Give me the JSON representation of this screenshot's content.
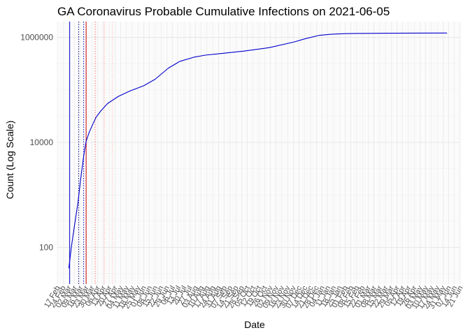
{
  "chart_data": {
    "type": "line",
    "title": "GA Coronavirus Probable Cumulative Infections on 2021-06-05",
    "xlabel": "Date",
    "ylabel": "Count (Log Scale)",
    "y_scale": "log10",
    "ylim": [
      20,
      2000000
    ],
    "y_ticks": [
      {
        "value": 100,
        "label": "100"
      },
      {
        "value": 10000,
        "label": "10000"
      },
      {
        "value": 1000000,
        "label": "1000000"
      }
    ],
    "xlim": [
      "2020-02-17",
      "2021-06-21"
    ],
    "x_tick_labels": [
      "17 Feb",
      "24 Feb",
      "02 Mar",
      "09 Mar",
      "16 Mar",
      "23 Mar",
      "30 Mar",
      "06 Apr",
      "13 Apr",
      "20 Apr",
      "27 Apr",
      "04 May",
      "11 May",
      "18 May",
      "25 May",
      "01 Jun",
      "08 Jun",
      "15 Jun",
      "22 Jun",
      "29 Jun",
      "06 Jul",
      "13 Jul",
      "20 Jul",
      "27 Jul",
      "03 Aug",
      "10 Aug",
      "17 Aug",
      "24 Aug",
      "31 Aug",
      "07 Sep",
      "14 Sep",
      "21 Sep",
      "28 Sep",
      "05 Oct",
      "12 Oct",
      "19 Oct",
      "26 Oct",
      "02 Nov",
      "09 Nov",
      "16 Nov",
      "23 Nov",
      "30 Nov",
      "07 Dec",
      "14 Dec",
      "21 Dec",
      "28 Dec",
      "04 Jan",
      "11 Jan",
      "18 Jan",
      "25 Jan",
      "01 Feb",
      "08 Feb",
      "15 Feb",
      "22 Feb",
      "01 Mar",
      "08 Mar",
      "15 Mar",
      "22 Mar",
      "29 Mar",
      "05 Apr",
      "12 Apr",
      "19 Apr",
      "26 Apr",
      "03 May",
      "10 May",
      "17 May",
      "24 May",
      "31 May",
      "07 Jun",
      "14 Jun",
      "21 Jun"
    ],
    "series": [
      {
        "color": "#0000cc",
        "x": [
          "2020-03-02",
          "2020-03-05",
          "2020-03-09",
          "2020-03-13",
          "2020-03-16",
          "2020-03-20",
          "2020-03-23",
          "2020-03-27",
          "2020-03-31",
          "2020-04-04",
          "2020-04-10",
          "2020-04-18",
          "2020-05-01",
          "2020-05-15",
          "2020-06-01",
          "2020-06-15",
          "2020-07-01",
          "2020-07-15",
          "2020-08-01",
          "2020-08-15",
          "2020-09-01",
          "2020-10-01",
          "2020-11-01",
          "2020-12-01",
          "2020-12-15",
          "2021-01-01",
          "2021-01-15",
          "2021-02-01",
          "2021-02-15",
          "2021-03-01",
          "2021-03-15",
          "2021-04-01",
          "2021-05-01",
          "2021-06-05"
        ],
        "y": [
          40,
          100,
          270,
          700,
          1800,
          5500,
          10500,
          16000,
          22000,
          30000,
          40000,
          55000,
          75000,
          95000,
          120000,
          160000,
          260000,
          350000,
          420000,
          460000,
          490000,
          550000,
          640000,
          820000,
          950000,
          1100000,
          1150000,
          1180000,
          1190000,
          1195000,
          1200000,
          1205000,
          1210000,
          1215000
        ]
      }
    ],
    "reference_lines": [
      {
        "x": "2020-03-03",
        "color": "#0000cc",
        "style": "solid"
      },
      {
        "x": "2020-03-14",
        "color": "#000080",
        "style": "dotted"
      },
      {
        "x": "2020-03-20",
        "color": "#0000cc",
        "style": "dotted"
      },
      {
        "x": "2020-03-23",
        "color": "#cc0000",
        "style": "solid"
      },
      {
        "x": "2020-04-03",
        "color": "#ff6666",
        "style": "dotted"
      },
      {
        "x": "2020-04-14",
        "color": "#ff9999",
        "style": "dotted"
      },
      {
        "x": "2020-04-24",
        "color": "#ffbbbb",
        "style": "dotted"
      }
    ],
    "grid": true,
    "legend": "none"
  }
}
